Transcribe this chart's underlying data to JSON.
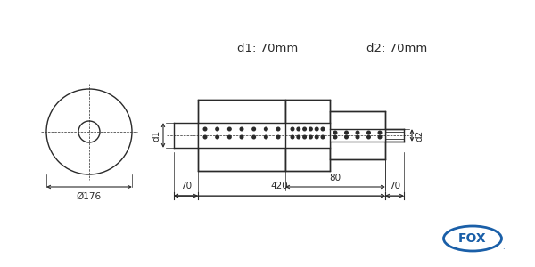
{
  "bg_color": "#ffffff",
  "line_color": "#2a2a2a",
  "dim_color": "#2a2a2a",
  "d1_label": "d1: 70mm",
  "d2_label": "d2: 70mm",
  "dia_label": "Ø176",
  "len_main": "420",
  "len_left": "70",
  "len_right": "70",
  "len_mid": "80",
  "d1_arrow": "d1",
  "d2_arrow": "d2",
  "fox_color": "#1a5fa8",
  "font_size_label": 9.5,
  "font_size_dim": 7.5,
  "lw": 1.0
}
